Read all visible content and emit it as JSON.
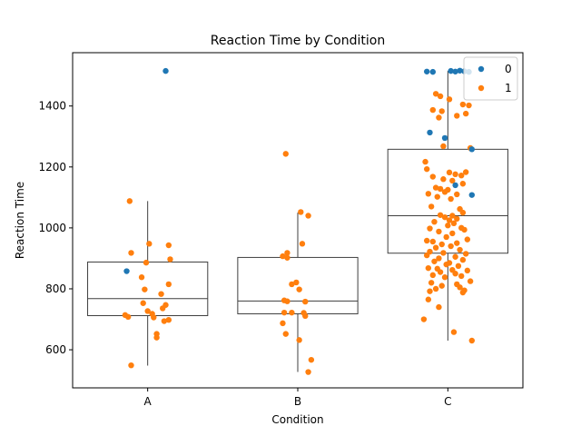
{
  "chart_data": {
    "type": "box-strip",
    "title": "Reaction Time by Condition",
    "xlabel": "Condition",
    "ylabel": "Reaction Time",
    "categories": [
      "A",
      "B",
      "C"
    ],
    "ylim": [
      475,
      1575
    ],
    "yticks": [
      600,
      800,
      1000,
      1200,
      1400
    ],
    "ytick_labels": [
      "600",
      "800",
      "1000",
      "1200",
      "1400"
    ],
    "grid": false,
    "legend": {
      "location": "top-right",
      "entries": [
        {
          "label": "0",
          "color": "#1f77b4"
        },
        {
          "label": "1",
          "color": "#ff7f0e"
        }
      ]
    },
    "colors": {
      "hue_0": "#1f77b4",
      "hue_1": "#ff7f0e",
      "box_line": "#3f3f3f"
    },
    "boxes": [
      {
        "category": "A",
        "whisker_low": 548,
        "q1": 712,
        "median": 768,
        "q3": 888,
        "whisker_high": 1088
      },
      {
        "category": "B",
        "whisker_low": 527,
        "q1": 718,
        "median": 760,
        "q3": 903,
        "whisker_high": 1050
      },
      {
        "category": "C",
        "whisker_low": 630,
        "q1": 917,
        "median": 1040,
        "q3": 1258,
        "whisker_high": 1515
      }
    ],
    "series": [
      {
        "name": "0",
        "points": [
          {
            "category": "A",
            "jitter": 0.12,
            "y": 1515
          },
          {
            "category": "A",
            "jitter": -0.14,
            "y": 858
          },
          {
            "category": "C",
            "jitter": -0.14,
            "y": 1513
          },
          {
            "category": "C",
            "jitter": -0.1,
            "y": 1512
          },
          {
            "category": "C",
            "jitter": 0.02,
            "y": 1515
          },
          {
            "category": "C",
            "jitter": 0.05,
            "y": 1513
          },
          {
            "category": "C",
            "jitter": 0.08,
            "y": 1516
          },
          {
            "category": "C",
            "jitter": 0.11,
            "y": 1514
          },
          {
            "category": "C",
            "jitter": 0.14,
            "y": 1512
          },
          {
            "category": "C",
            "jitter": -0.12,
            "y": 1313
          },
          {
            "category": "C",
            "jitter": -0.02,
            "y": 1295
          },
          {
            "category": "C",
            "jitter": 0.16,
            "y": 1258
          },
          {
            "category": "C",
            "jitter": 0.05,
            "y": 1140
          },
          {
            "category": "C",
            "jitter": 0.16,
            "y": 1108
          }
        ]
      },
      {
        "name": "1",
        "points": [
          {
            "category": "A",
            "jitter": -0.12,
            "y": 1088
          },
          {
            "category": "A",
            "jitter": 0.01,
            "y": 948
          },
          {
            "category": "A",
            "jitter": 0.14,
            "y": 943
          },
          {
            "category": "A",
            "jitter": -0.11,
            "y": 918
          },
          {
            "category": "A",
            "jitter": 0.15,
            "y": 897
          },
          {
            "category": "A",
            "jitter": -0.01,
            "y": 886
          },
          {
            "category": "A",
            "jitter": -0.04,
            "y": 838
          },
          {
            "category": "A",
            "jitter": 0.14,
            "y": 815
          },
          {
            "category": "A",
            "jitter": -0.02,
            "y": 798
          },
          {
            "category": "A",
            "jitter": 0.09,
            "y": 783
          },
          {
            "category": "A",
            "jitter": -0.03,
            "y": 753
          },
          {
            "category": "A",
            "jitter": 0.12,
            "y": 747
          },
          {
            "category": "A",
            "jitter": 0.1,
            "y": 736
          },
          {
            "category": "A",
            "jitter": 0.0,
            "y": 727
          },
          {
            "category": "A",
            "jitter": 0.03,
            "y": 718
          },
          {
            "category": "A",
            "jitter": -0.15,
            "y": 714
          },
          {
            "category": "A",
            "jitter": -0.13,
            "y": 708
          },
          {
            "category": "A",
            "jitter": 0.04,
            "y": 706
          },
          {
            "category": "A",
            "jitter": 0.14,
            "y": 698
          },
          {
            "category": "A",
            "jitter": 0.11,
            "y": 694
          },
          {
            "category": "A",
            "jitter": 0.06,
            "y": 652
          },
          {
            "category": "A",
            "jitter": 0.06,
            "y": 640
          },
          {
            "category": "A",
            "jitter": -0.11,
            "y": 549
          },
          {
            "category": "B",
            "jitter": -0.08,
            "y": 1243
          },
          {
            "category": "B",
            "jitter": 0.02,
            "y": 1052
          },
          {
            "category": "B",
            "jitter": 0.07,
            "y": 1040
          },
          {
            "category": "B",
            "jitter": 0.03,
            "y": 948
          },
          {
            "category": "B",
            "jitter": -0.07,
            "y": 918
          },
          {
            "category": "B",
            "jitter": -0.1,
            "y": 907
          },
          {
            "category": "B",
            "jitter": -0.07,
            "y": 902
          },
          {
            "category": "B",
            "jitter": -0.01,
            "y": 821
          },
          {
            "category": "B",
            "jitter": -0.04,
            "y": 815
          },
          {
            "category": "B",
            "jitter": 0.01,
            "y": 798
          },
          {
            "category": "B",
            "jitter": -0.09,
            "y": 762
          },
          {
            "category": "B",
            "jitter": -0.07,
            "y": 759
          },
          {
            "category": "B",
            "jitter": 0.05,
            "y": 758
          },
          {
            "category": "B",
            "jitter": -0.09,
            "y": 722
          },
          {
            "category": "B",
            "jitter": -0.04,
            "y": 722
          },
          {
            "category": "B",
            "jitter": 0.04,
            "y": 721
          },
          {
            "category": "B",
            "jitter": 0.05,
            "y": 711
          },
          {
            "category": "B",
            "jitter": -0.1,
            "y": 687
          },
          {
            "category": "B",
            "jitter": -0.08,
            "y": 652
          },
          {
            "category": "B",
            "jitter": 0.01,
            "y": 632
          },
          {
            "category": "B",
            "jitter": 0.09,
            "y": 567
          },
          {
            "category": "B",
            "jitter": 0.07,
            "y": 527
          },
          {
            "category": "C",
            "jitter": -0.08,
            "y": 1440
          },
          {
            "category": "C",
            "jitter": -0.05,
            "y": 1432
          },
          {
            "category": "C",
            "jitter": 0.01,
            "y": 1422
          },
          {
            "category": "C",
            "jitter": 0.1,
            "y": 1405
          },
          {
            "category": "C",
            "jitter": 0.14,
            "y": 1402
          },
          {
            "category": "C",
            "jitter": -0.1,
            "y": 1387
          },
          {
            "category": "C",
            "jitter": -0.04,
            "y": 1383
          },
          {
            "category": "C",
            "jitter": 0.12,
            "y": 1375
          },
          {
            "category": "C",
            "jitter": 0.06,
            "y": 1368
          },
          {
            "category": "C",
            "jitter": -0.06,
            "y": 1362
          },
          {
            "category": "C",
            "jitter": -0.03,
            "y": 1268
          },
          {
            "category": "C",
            "jitter": 0.15,
            "y": 1262
          },
          {
            "category": "C",
            "jitter": -0.15,
            "y": 1217
          },
          {
            "category": "C",
            "jitter": -0.14,
            "y": 1193
          },
          {
            "category": "C",
            "jitter": 0.01,
            "y": 1182
          },
          {
            "category": "C",
            "jitter": 0.12,
            "y": 1183
          },
          {
            "category": "C",
            "jitter": 0.05,
            "y": 1176
          },
          {
            "category": "C",
            "jitter": 0.09,
            "y": 1172
          },
          {
            "category": "C",
            "jitter": -0.1,
            "y": 1168
          },
          {
            "category": "C",
            "jitter": -0.03,
            "y": 1160
          },
          {
            "category": "C",
            "jitter": 0.03,
            "y": 1155
          },
          {
            "category": "C",
            "jitter": 0.1,
            "y": 1145
          },
          {
            "category": "C",
            "jitter": -0.08,
            "y": 1132
          },
          {
            "category": "C",
            "jitter": -0.05,
            "y": 1128
          },
          {
            "category": "C",
            "jitter": 0.0,
            "y": 1125
          },
          {
            "category": "C",
            "jitter": -0.02,
            "y": 1118
          },
          {
            "category": "C",
            "jitter": -0.13,
            "y": 1112
          },
          {
            "category": "C",
            "jitter": 0.06,
            "y": 1110
          },
          {
            "category": "C",
            "jitter": -0.07,
            "y": 1102
          },
          {
            "category": "C",
            "jitter": 0.02,
            "y": 1095
          },
          {
            "category": "C",
            "jitter": -0.11,
            "y": 1070
          },
          {
            "category": "C",
            "jitter": 0.08,
            "y": 1062
          },
          {
            "category": "C",
            "jitter": 0.1,
            "y": 1050
          },
          {
            "category": "C",
            "jitter": -0.05,
            "y": 1042
          },
          {
            "category": "C",
            "jitter": 0.03,
            "y": 1040
          },
          {
            "category": "C",
            "jitter": -0.02,
            "y": 1035
          },
          {
            "category": "C",
            "jitter": 0.06,
            "y": 1030
          },
          {
            "category": "C",
            "jitter": 0.01,
            "y": 1025
          },
          {
            "category": "C",
            "jitter": -0.09,
            "y": 1020
          },
          {
            "category": "C",
            "jitter": 0.04,
            "y": 1015
          },
          {
            "category": "C",
            "jitter": 0.0,
            "y": 1008
          },
          {
            "category": "C",
            "jitter": 0.09,
            "y": 1000
          },
          {
            "category": "C",
            "jitter": -0.12,
            "y": 998
          },
          {
            "category": "C",
            "jitter": 0.11,
            "y": 994
          },
          {
            "category": "C",
            "jitter": -0.06,
            "y": 988
          },
          {
            "category": "C",
            "jitter": 0.03,
            "y": 982
          },
          {
            "category": "C",
            "jitter": -0.01,
            "y": 970
          },
          {
            "category": "C",
            "jitter": 0.13,
            "y": 962
          },
          {
            "category": "C",
            "jitter": -0.14,
            "y": 958
          },
          {
            "category": "C",
            "jitter": -0.1,
            "y": 955
          },
          {
            "category": "C",
            "jitter": 0.06,
            "y": 950
          },
          {
            "category": "C",
            "jitter": -0.04,
            "y": 946
          },
          {
            "category": "C",
            "jitter": 0.02,
            "y": 940
          },
          {
            "category": "C",
            "jitter": -0.08,
            "y": 935
          },
          {
            "category": "C",
            "jitter": 0.08,
            "y": 928
          },
          {
            "category": "C",
            "jitter": -0.12,
            "y": 922
          },
          {
            "category": "C",
            "jitter": -0.03,
            "y": 918
          },
          {
            "category": "C",
            "jitter": 0.12,
            "y": 915
          },
          {
            "category": "C",
            "jitter": -0.14,
            "y": 910
          },
          {
            "category": "C",
            "jitter": 0.05,
            "y": 905
          },
          {
            "category": "C",
            "jitter": -0.06,
            "y": 900
          },
          {
            "category": "C",
            "jitter": 0.1,
            "y": 895
          },
          {
            "category": "C",
            "jitter": -0.09,
            "y": 890
          },
          {
            "category": "C",
            "jitter": 0.01,
            "y": 885
          },
          {
            "category": "C",
            "jitter": -0.01,
            "y": 880
          },
          {
            "category": "C",
            "jitter": 0.07,
            "y": 875
          },
          {
            "category": "C",
            "jitter": -0.13,
            "y": 868
          },
          {
            "category": "C",
            "jitter": -0.07,
            "y": 866
          },
          {
            "category": "C",
            "jitter": 0.03,
            "y": 862
          },
          {
            "category": "C",
            "jitter": 0.13,
            "y": 860
          },
          {
            "category": "C",
            "jitter": -0.05,
            "y": 855
          },
          {
            "category": "C",
            "jitter": 0.05,
            "y": 850
          },
          {
            "category": "C",
            "jitter": -0.1,
            "y": 845
          },
          {
            "category": "C",
            "jitter": 0.09,
            "y": 842
          },
          {
            "category": "C",
            "jitter": -0.02,
            "y": 838
          },
          {
            "category": "C",
            "jitter": 0.15,
            "y": 825
          },
          {
            "category": "C",
            "jitter": -0.11,
            "y": 820
          },
          {
            "category": "C",
            "jitter": 0.06,
            "y": 815
          },
          {
            "category": "C",
            "jitter": -0.04,
            "y": 810
          },
          {
            "category": "C",
            "jitter": 0.08,
            "y": 805
          },
          {
            "category": "C",
            "jitter": -0.08,
            "y": 800
          },
          {
            "category": "C",
            "jitter": 0.11,
            "y": 795
          },
          {
            "category": "C",
            "jitter": -0.12,
            "y": 792
          },
          {
            "category": "C",
            "jitter": 0.1,
            "y": 788
          },
          {
            "category": "C",
            "jitter": -0.13,
            "y": 765
          },
          {
            "category": "C",
            "jitter": -0.06,
            "y": 740
          },
          {
            "category": "C",
            "jitter": -0.16,
            "y": 700
          },
          {
            "category": "C",
            "jitter": 0.04,
            "y": 658
          },
          {
            "category": "C",
            "jitter": 0.16,
            "y": 630
          }
        ]
      }
    ]
  }
}
